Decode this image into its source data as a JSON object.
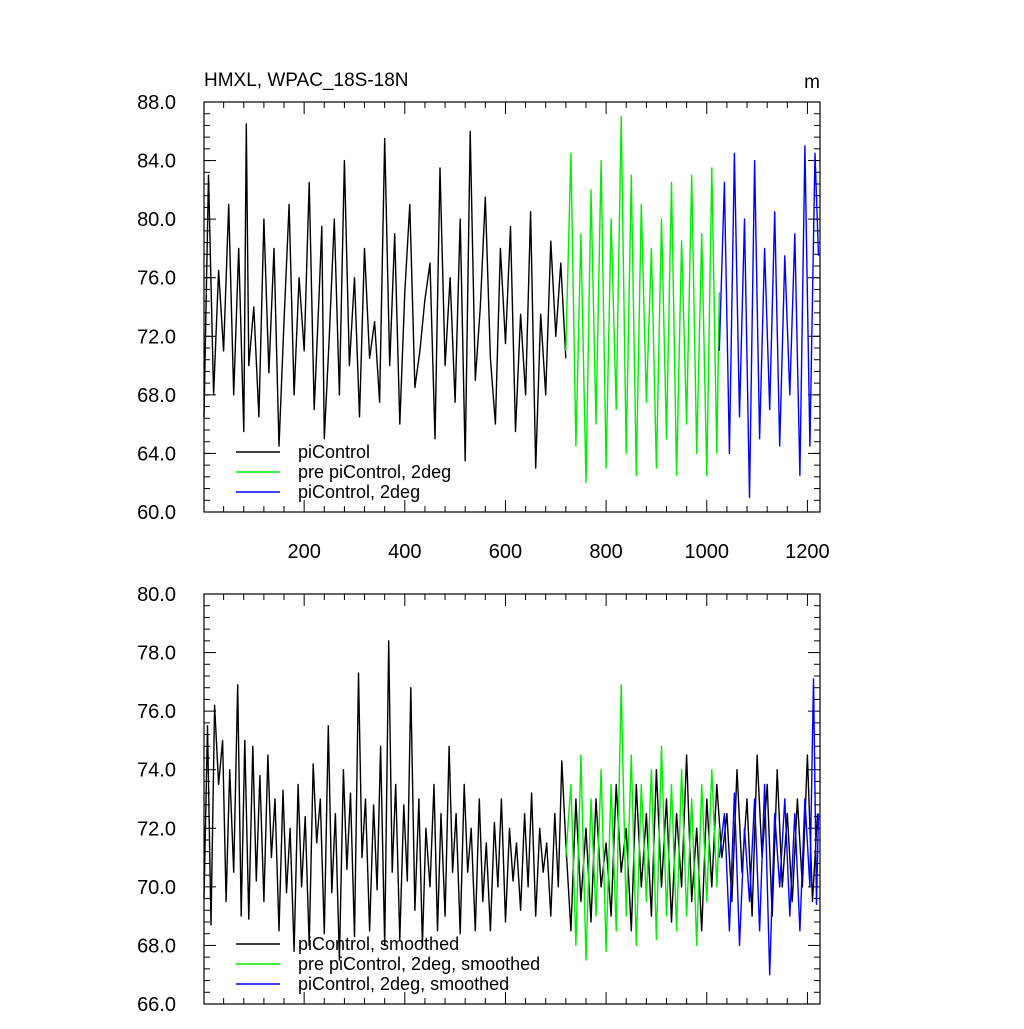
{
  "chart_data": [
    {
      "type": "line",
      "title": "HMXL, WPAC_18S-18N",
      "units": "m",
      "xlabel": "",
      "ylabel": "",
      "xlim": [
        1,
        1225
      ],
      "ylim": [
        60,
        88
      ],
      "x_ticks": [
        200,
        400,
        600,
        800,
        1000,
        1200
      ],
      "x_tick_labels": [
        "200",
        "400",
        "600",
        "800",
        "1000",
        "1200"
      ],
      "y_ticks": [
        60,
        64,
        68,
        72,
        76,
        80,
        84,
        88
      ],
      "y_tick_labels": [
        "60.0",
        "64.0",
        "68.0",
        "72.0",
        "76.0",
        "80.0",
        "84.0",
        "88.0"
      ],
      "grid": false,
      "legend_position": "bottom-left",
      "series": [
        {
          "name": "piControl",
          "color": "#000000",
          "x": [
            1,
            10,
            20,
            30,
            40,
            50,
            60,
            70,
            80,
            85,
            90,
            100,
            110,
            120,
            130,
            140,
            150,
            160,
            170,
            180,
            190,
            200,
            210,
            220,
            230,
            235,
            240,
            250,
            260,
            270,
            280,
            290,
            300,
            310,
            320,
            330,
            340,
            350,
            360,
            370,
            380,
            390,
            400,
            410,
            420,
            430,
            440,
            450,
            460,
            470,
            480,
            490,
            500,
            510,
            520,
            530,
            540,
            550,
            560,
            570,
            580,
            590,
            600,
            610,
            620,
            630,
            640,
            650,
            660,
            670,
            680,
            690,
            700,
            710,
            720
          ],
          "y": [
            66.5,
            83.0,
            68.0,
            76.5,
            71.0,
            81.0,
            68.0,
            78.0,
            65.5,
            86.5,
            70.0,
            74.0,
            66.5,
            80.0,
            69.5,
            78.0,
            64.5,
            73.0,
            81.0,
            68.0,
            76.0,
            71.0,
            82.5,
            67.0,
            75.0,
            79.5,
            65.0,
            72.0,
            80.0,
            68.0,
            84.0,
            70.0,
            76.0,
            66.5,
            78.0,
            70.5,
            73.0,
            67.5,
            85.5,
            70.0,
            79.0,
            66.0,
            75.0,
            81.0,
            68.5,
            71.0,
            74.5,
            77.0,
            65.0,
            83.5,
            70.0,
            76.0,
            67.5,
            80.0,
            63.5,
            86.0,
            69.0,
            74.0,
            81.5,
            70.5,
            66.0,
            78.0,
            71.5,
            79.5,
            65.5,
            73.5,
            68.0,
            80.5,
            63.0,
            73.5,
            68.0,
            78.5,
            72.0,
            77.0,
            70.5
          ]
        },
        {
          "name": "pre piControl, 2deg",
          "color": "#00ee00",
          "x": [
            720,
            730,
            740,
            750,
            760,
            770,
            780,
            790,
            800,
            810,
            820,
            830,
            840,
            850,
            860,
            870,
            880,
            890,
            900,
            910,
            920,
            930,
            940,
            950,
            960,
            970,
            980,
            990,
            1000,
            1010,
            1020,
            1025
          ],
          "y": [
            71.0,
            84.5,
            64.5,
            79.0,
            62.0,
            82.0,
            66.0,
            84.0,
            63.0,
            80.0,
            67.0,
            87.0,
            64.0,
            83.0,
            62.5,
            81.0,
            67.5,
            78.0,
            63.0,
            80.0,
            65.0,
            82.5,
            62.5,
            78.5,
            66.0,
            83.0,
            64.0,
            79.0,
            62.5,
            83.5,
            64.0,
            75.0
          ]
        },
        {
          "name": "piControl, 2deg",
          "color": "#0000ff",
          "x": [
            1025,
            1035,
            1045,
            1055,
            1065,
            1075,
            1085,
            1095,
            1105,
            1115,
            1125,
            1135,
            1145,
            1155,
            1165,
            1175,
            1185,
            1195,
            1205,
            1215,
            1222
          ],
          "y": [
            71.0,
            82.5,
            64.0,
            84.5,
            66.5,
            80.0,
            61.0,
            84.0,
            65.0,
            78.0,
            67.0,
            80.5,
            64.5,
            77.5,
            68.0,
            79.0,
            62.5,
            85.0,
            64.5,
            84.5,
            77.5
          ]
        }
      ]
    },
    {
      "type": "line",
      "title": "",
      "units": "",
      "xlabel": "",
      "ylabel": "",
      "xlim": [
        1,
        1225
      ],
      "ylim": [
        66,
        80
      ],
      "x_ticks": [
        200,
        400,
        600,
        800,
        1000,
        1200
      ],
      "x_tick_labels": [],
      "y_ticks": [
        66,
        68,
        70,
        72,
        74,
        76,
        78,
        80
      ],
      "y_tick_labels": [
        "66.0",
        "68.0",
        "70.0",
        "72.0",
        "74.0",
        "76.0",
        "78.0",
        "80.0"
      ],
      "grid": false,
      "legend_position": "bottom-left",
      "series": [
        {
          "name": "piControl, smoothed",
          "color": "#000000",
          "x": [
            1,
            8,
            15,
            22,
            30,
            38,
            45,
            52,
            60,
            68,
            75,
            82,
            90,
            98,
            105,
            112,
            120,
            128,
            135,
            142,
            150,
            158,
            165,
            172,
            180,
            188,
            195,
            202,
            210,
            218,
            225,
            232,
            240,
            248,
            255,
            262,
            270,
            278,
            285,
            292,
            300,
            308,
            315,
            322,
            330,
            338,
            345,
            352,
            360,
            368,
            375,
            382,
            390,
            398,
            405,
            412,
            420,
            428,
            435,
            442,
            450,
            458,
            465,
            472,
            480,
            488,
            495,
            502,
            510,
            518,
            525,
            532,
            540,
            548,
            555,
            562,
            570,
            578,
            585,
            592,
            600,
            608,
            615,
            622,
            630,
            638,
            645,
            652,
            660,
            668,
            675,
            682,
            690,
            698,
            705,
            712,
            720,
            730,
            740,
            750,
            760,
            770,
            780,
            790,
            800,
            810,
            820,
            830,
            840,
            850,
            860,
            870,
            880,
            890,
            900,
            910,
            920,
            930,
            940,
            950,
            960,
            970,
            980,
            990,
            1000,
            1010,
            1020,
            1030,
            1040,
            1050,
            1060,
            1070,
            1080,
            1090,
            1100,
            1110,
            1120,
            1130,
            1140,
            1150,
            1160,
            1170,
            1180,
            1190,
            1200,
            1210,
            1220
          ],
          "y": [
            69.6,
            75.5,
            68.7,
            76.2,
            73.5,
            75.0,
            69.5,
            74.0,
            70.5,
            76.9,
            69.0,
            75.0,
            68.9,
            74.8,
            70.2,
            73.8,
            69.5,
            74.5,
            71.0,
            73.0,
            68.5,
            73.3,
            69.8,
            72.0,
            67.8,
            73.5,
            70.0,
            72.4,
            68.0,
            74.2,
            71.5,
            73.0,
            68.4,
            75.5,
            69.8,
            72.5,
            67.5,
            74.0,
            70.6,
            73.2,
            68.3,
            77.3,
            71.0,
            73.0,
            68.5,
            72.8,
            69.9,
            74.8,
            68.0,
            78.4,
            70.5,
            73.5,
            68.2,
            72.8,
            70.2,
            76.8,
            69.2,
            73.0,
            68.0,
            72.0,
            70.0,
            73.5,
            68.5,
            72.5,
            69.0,
            74.8,
            70.5,
            72.5,
            68.4,
            73.5,
            70.5,
            72.0,
            68.5,
            73.0,
            69.5,
            71.5,
            68.5,
            72.2,
            70.0,
            73.0,
            68.8,
            72.0,
            70.2,
            71.5,
            69.2,
            72.5,
            70.0,
            73.2,
            69.0,
            72.0,
            70.5,
            71.5,
            69.0,
            72.5,
            70.0,
            74.3,
            71.5,
            68.5,
            73.0,
            69.5,
            72.0,
            68.8,
            73.0,
            70.0,
            71.5,
            69.0,
            73.5,
            70.5,
            72.0,
            68.5,
            73.5,
            70.0,
            72.5,
            69.0,
            74.0,
            70.0,
            73.0,
            68.8,
            72.5,
            70.0,
            74.5,
            69.5,
            72.0,
            68.5,
            73.0,
            70.0,
            73.5,
            71.0,
            72.5,
            69.5,
            74.0,
            70.5,
            73.0,
            69.0,
            74.5,
            71.0,
            73.5,
            69.0,
            74.0,
            70.0,
            72.5,
            69.5,
            73.0,
            70.0,
            74.5,
            69.5,
            72.5
          ]
        },
        {
          "name": "pre piControl, 2deg, smoothed",
          "color": "#00ee00",
          "x": [
            720,
            730,
            740,
            750,
            760,
            770,
            780,
            790,
            800,
            810,
            820,
            830,
            840,
            850,
            860,
            870,
            880,
            890,
            900,
            910,
            920,
            930,
            940,
            950,
            960,
            970,
            980,
            990,
            1000,
            1010,
            1020,
            1025
          ],
          "y": [
            71.0,
            73.5,
            68.0,
            74.5,
            67.5,
            73.0,
            69.0,
            74.0,
            67.8,
            73.5,
            68.5,
            76.9,
            69.0,
            74.5,
            68.0,
            73.5,
            69.5,
            74.0,
            68.2,
            74.8,
            69.0,
            73.5,
            68.5,
            74.0,
            69.0,
            73.0,
            68.0,
            73.5,
            69.5,
            74.0,
            70.0,
            72.0
          ]
        },
        {
          "name": "piControl, 2deg, smoothed",
          "color": "#0000ff",
          "x": [
            1025,
            1035,
            1045,
            1055,
            1065,
            1075,
            1085,
            1095,
            1105,
            1115,
            1125,
            1135,
            1145,
            1155,
            1165,
            1175,
            1185,
            1195,
            1205,
            1212,
            1218,
            1222
          ],
          "y": [
            71.0,
            72.5,
            68.5,
            73.2,
            68.0,
            72.0,
            69.5,
            73.0,
            68.5,
            73.5,
            67.0,
            72.5,
            70.0,
            73.0,
            69.0,
            72.5,
            68.5,
            73.0,
            70.0,
            77.1,
            69.4,
            72.5
          ]
        }
      ]
    }
  ]
}
